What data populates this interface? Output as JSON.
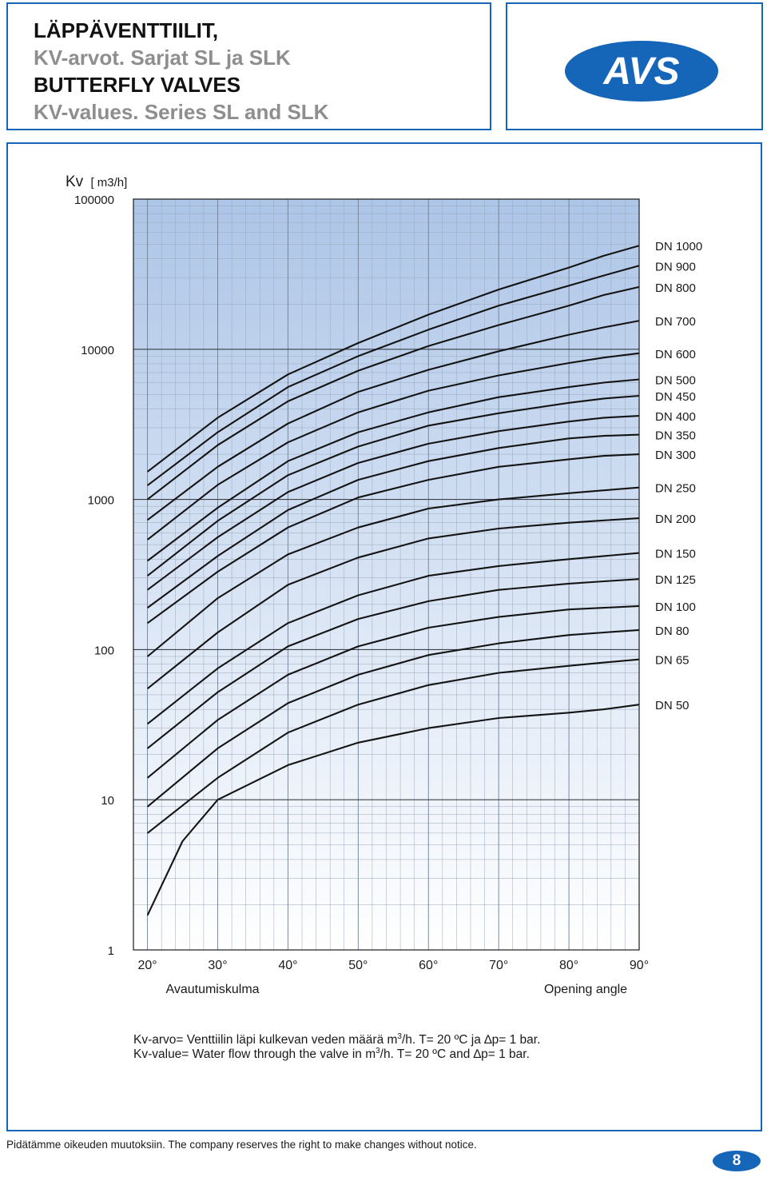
{
  "header": {
    "title_fi": "LÄPPÄVENTTIILIT,",
    "subtitle_fi": "KV-arvot. Sarjat SL ja SLK",
    "title_en": "BUTTERFLY VALVES",
    "subtitle_en": "KV-values. Series SL and SLK"
  },
  "logo": {
    "text": "AVS",
    "color": "#1565b8"
  },
  "chart_data": {
    "type": "line",
    "title": "",
    "ylabel": "Kv",
    "ylabel_unit": "[ m3/h]",
    "xlabel_fi": "Avautumiskulma",
    "xlabel_en": "Opening angle",
    "y_scale": "log",
    "ylim": [
      1,
      100000
    ],
    "xlim": [
      18,
      90
    ],
    "y_ticks": [
      "1",
      "10",
      "100",
      "1000",
      "10000",
      "100000"
    ],
    "x_ticks": [
      "20°",
      "30°",
      "40°",
      "50°",
      "60°",
      "70°",
      "80°",
      "90°"
    ],
    "x_tick_values": [
      20,
      30,
      40,
      50,
      60,
      70,
      80,
      90
    ],
    "grid": true,
    "background": "gradient blue to white",
    "series": [
      {
        "name": "DN 1000",
        "x": [
          20,
          30,
          40,
          50,
          60,
          70,
          80,
          85,
          90
        ],
        "y": [
          1530,
          3500,
          6800,
          11000,
          17000,
          25000,
          35000,
          42000,
          49000
        ]
      },
      {
        "name": "DN 900",
        "x": [
          20,
          30,
          40,
          50,
          60,
          70,
          80,
          85,
          90
        ],
        "y": [
          1240,
          2800,
          5600,
          9000,
          13500,
          19500,
          26500,
          31000,
          36000
        ]
      },
      {
        "name": "DN 800",
        "x": [
          20,
          30,
          40,
          50,
          60,
          70,
          80,
          85,
          90
        ],
        "y": [
          1000,
          2300,
          4500,
          7200,
          10500,
          14500,
          19500,
          23000,
          26000
        ]
      },
      {
        "name": "DN 700",
        "x": [
          20,
          30,
          40,
          50,
          60,
          70,
          80,
          85,
          90
        ],
        "y": [
          730,
          1650,
          3200,
          5200,
          7300,
          9700,
          12500,
          14000,
          15500
        ]
      },
      {
        "name": "DN 600",
        "x": [
          20,
          30,
          40,
          50,
          60,
          70,
          80,
          85,
          90
        ],
        "y": [
          540,
          1250,
          2400,
          3800,
          5300,
          6700,
          8100,
          8800,
          9400
        ]
      },
      {
        "name": "DN 500",
        "x": [
          20,
          30,
          40,
          50,
          60,
          70,
          80,
          85,
          90
        ],
        "y": [
          390,
          880,
          1800,
          2800,
          3800,
          4800,
          5600,
          6000,
          6300
        ]
      },
      {
        "name": "DN 450",
        "x": [
          20,
          30,
          40,
          50,
          60,
          70,
          80,
          85,
          90
        ],
        "y": [
          310,
          720,
          1450,
          2250,
          3100,
          3750,
          4400,
          4700,
          4900
        ]
      },
      {
        "name": "DN 400",
        "x": [
          20,
          30,
          40,
          50,
          60,
          70,
          80,
          85,
          90
        ],
        "y": [
          250,
          560,
          1120,
          1750,
          2350,
          2850,
          3300,
          3500,
          3600
        ]
      },
      {
        "name": "DN 350",
        "x": [
          20,
          30,
          40,
          50,
          60,
          70,
          80,
          85,
          90
        ],
        "y": [
          190,
          420,
          850,
          1350,
          1800,
          2200,
          2550,
          2650,
          2700
        ]
      },
      {
        "name": "DN 300",
        "x": [
          20,
          30,
          40,
          50,
          60,
          70,
          80,
          85,
          90
        ],
        "y": [
          150,
          330,
          650,
          1030,
          1350,
          1650,
          1850,
          1950,
          2000
        ]
      },
      {
        "name": "DN 250",
        "x": [
          20,
          30,
          40,
          50,
          60,
          70,
          80,
          85,
          90
        ],
        "y": [
          90,
          220,
          430,
          650,
          870,
          1000,
          1100,
          1150,
          1200
        ]
      },
      {
        "name": "DN 200",
        "x": [
          20,
          30,
          40,
          50,
          60,
          70,
          80,
          85,
          90
        ],
        "y": [
          55,
          130,
          270,
          410,
          550,
          640,
          700,
          725,
          750
        ]
      },
      {
        "name": "DN 150",
        "x": [
          20,
          30,
          40,
          50,
          60,
          70,
          80,
          85,
          90
        ],
        "y": [
          32,
          75,
          150,
          230,
          310,
          360,
          400,
          420,
          440
        ]
      },
      {
        "name": "DN 125",
        "x": [
          20,
          30,
          40,
          50,
          60,
          70,
          80,
          85,
          90
        ],
        "y": [
          22,
          52,
          105,
          160,
          210,
          250,
          275,
          285,
          295
        ]
      },
      {
        "name": "DN 100",
        "x": [
          20,
          30,
          40,
          50,
          60,
          70,
          80,
          85,
          90
        ],
        "y": [
          14,
          34,
          68,
          105,
          140,
          165,
          185,
          190,
          195
        ]
      },
      {
        "name": "DN 80",
        "x": [
          20,
          30,
          40,
          50,
          60,
          70,
          80,
          85,
          90
        ],
        "y": [
          9,
          22,
          44,
          68,
          92,
          110,
          125,
          130,
          135
        ]
      },
      {
        "name": "DN 65",
        "x": [
          20,
          30,
          40,
          50,
          60,
          70,
          80,
          85,
          90
        ],
        "y": [
          6,
          14,
          28,
          43,
          58,
          70,
          78,
          82,
          86
        ]
      },
      {
        "name": "DN 50",
        "x": [
          20,
          25,
          30,
          40,
          50,
          60,
          70,
          80,
          85,
          90
        ],
        "y": [
          1.7,
          5.3,
          10,
          17,
          24,
          30,
          35,
          38,
          40,
          43
        ]
      }
    ]
  },
  "notes": {
    "fi_prefix": "Kv-arvo= Venttiilin läpi kulkevan veden määrä m",
    "fi_sup": "3",
    "fi_suffix": "/h. T= 20 ºC ja ∆p= 1 bar.",
    "en_prefix": "Kv-value= Water flow through the valve in m",
    "en_sup": "3",
    "en_suffix": "/h. T= 20 ºC and ∆p= 1 bar."
  },
  "footer": {
    "text": "Pidätämme oikeuden muutoksiin. The company reserves the right to make changes without notice."
  },
  "page": {
    "number": "8"
  }
}
